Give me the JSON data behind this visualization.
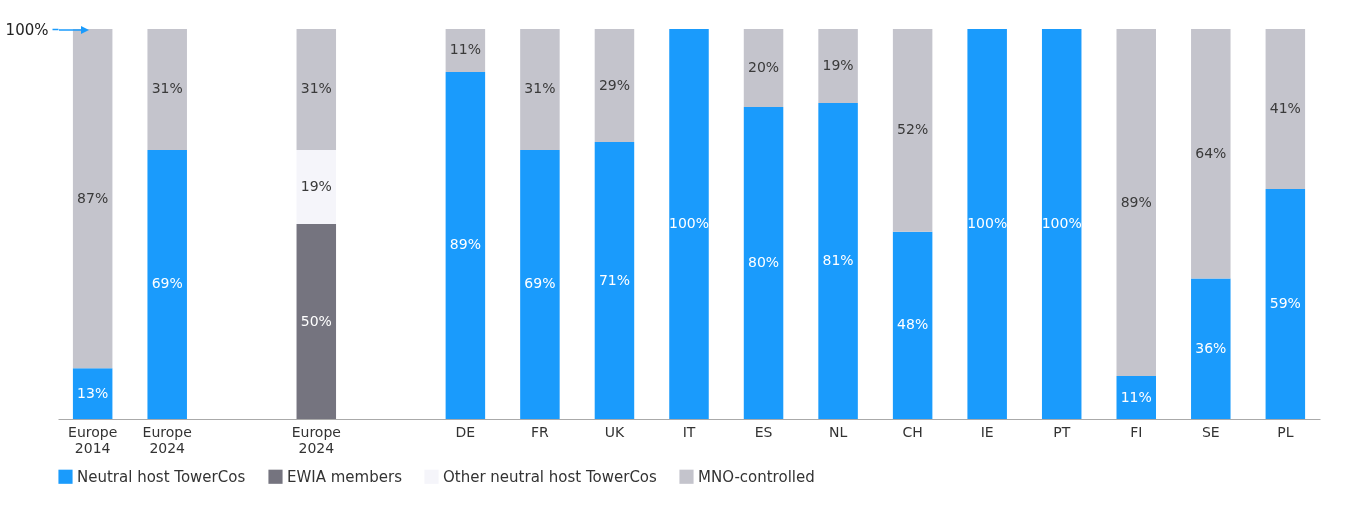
{
  "chart_data": {
    "type": "bar",
    "stacked": true,
    "legend": "bottom",
    "grid": false,
    "categories": [
      "Europe 2014",
      "Europe 2024",
      null,
      "Europe 2024",
      null,
      "DE",
      "FR",
      "UK",
      "IT",
      "ES",
      "NL",
      "CH",
      "IE",
      "PT",
      "FI",
      "SE",
      "PL"
    ],
    "ylim": [
      0,
      100
    ],
    "yticks": [
      {
        "value": 100,
        "label": "100%"
      }
    ],
    "series": [
      {
        "name": "Neutral host TowerCos",
        "color": "#1a9bfc",
        "values": [
          13,
          69,
          null,
          null,
          null,
          89,
          69,
          71,
          100,
          80,
          81,
          48,
          100,
          100,
          11,
          36,
          59
        ],
        "value_labels": [
          "13%",
          "69%",
          null,
          null,
          null,
          "89%",
          "69%",
          "71%",
          "100%",
          "80%",
          "81%",
          "48%",
          "100%",
          "100%",
          "11%",
          "36%",
          "59%"
        ]
      },
      {
        "name": "EWIA members",
        "color": "#75747f",
        "values": [
          null,
          null,
          null,
          50,
          null,
          null,
          null,
          null,
          null,
          null,
          null,
          null,
          null,
          null,
          null,
          null,
          null
        ],
        "value_labels": [
          null,
          null,
          null,
          "50%",
          null,
          null,
          null,
          null,
          null,
          null,
          null,
          null,
          null,
          null,
          null,
          null,
          null
        ]
      },
      {
        "name": "Other neutral host TowerCos",
        "color": "#f5f5fa",
        "values": [
          null,
          null,
          null,
          19,
          null,
          null,
          null,
          null,
          null,
          null,
          null,
          null,
          null,
          null,
          null,
          null,
          null
        ],
        "value_labels": [
          null,
          null,
          null,
          "19%",
          null,
          null,
          null,
          null,
          null,
          null,
          null,
          null,
          null,
          null,
          null,
          null,
          null
        ]
      },
      {
        "name": "MNO-controlled",
        "color": "#c4c4cc",
        "values": [
          87,
          31,
          null,
          31,
          null,
          11,
          31,
          29,
          null,
          20,
          19,
          52,
          null,
          null,
          89,
          64,
          41
        ],
        "value_labels": [
          "87%",
          "31%",
          null,
          "31%",
          null,
          "11%",
          "31%",
          "29%",
          null,
          "20%",
          "19%",
          "52%",
          null,
          null,
          "89%",
          "64%",
          "41%"
        ]
      }
    ]
  }
}
